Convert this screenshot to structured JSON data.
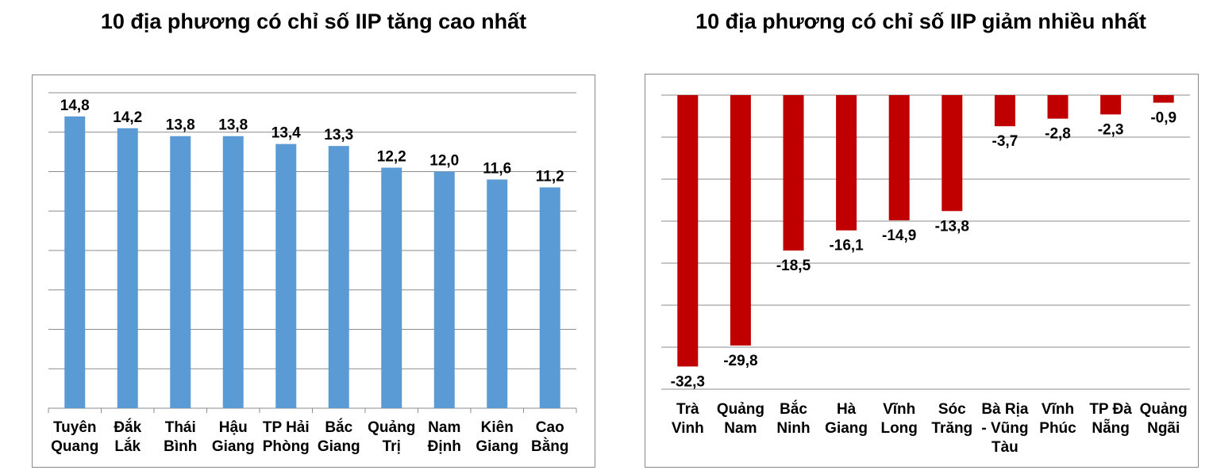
{
  "chart_data": [
    {
      "type": "bar",
      "title": "10 địa phương có chỉ số IIP tăng cao nhất",
      "categories": [
        [
          "Tuyên",
          "Quang"
        ],
        [
          "Đắk",
          "Lắk"
        ],
        [
          "Thái",
          "Bình"
        ],
        [
          "Hậu",
          "Giang"
        ],
        [
          "TP Hải",
          "Phòng"
        ],
        [
          "Bắc",
          "Giang"
        ],
        [
          "Quảng",
          "Trị"
        ],
        [
          "Nam",
          "Định"
        ],
        [
          "Kiên",
          "Giang"
        ],
        [
          "Cao",
          "Bằng"
        ]
      ],
      "values": [
        14.8,
        14.2,
        13.8,
        13.8,
        13.4,
        13.3,
        12.2,
        12.0,
        11.6,
        11.2
      ],
      "value_labels": [
        "14,8",
        "14,2",
        "13,8",
        "13,8",
        "13,4",
        "13,3",
        "12,2",
        "12,0",
        "11,6",
        "11,2"
      ],
      "ylim": [
        0,
        16
      ],
      "grid": true,
      "bar_color": "#5b9bd5"
    },
    {
      "type": "bar",
      "title": "10 địa phương có chỉ số IIP giảm nhiều nhất",
      "categories": [
        [
          "Trà",
          "Vinh"
        ],
        [
          "Quảng",
          "Nam"
        ],
        [
          "Bắc",
          "Ninh"
        ],
        [
          "Hà",
          "Giang"
        ],
        [
          "Vĩnh",
          "Long"
        ],
        [
          "Sóc",
          "Trăng"
        ],
        [
          "Bà Rịa",
          "- Vũng",
          "Tàu"
        ],
        [
          "Vĩnh",
          "Phúc"
        ],
        [
          "TP Đà",
          "Nẵng"
        ],
        [
          "Quảng",
          "Ngãi"
        ]
      ],
      "values": [
        -32.3,
        -29.8,
        -18.5,
        -16.1,
        -14.9,
        -13.8,
        -3.7,
        -2.8,
        -2.3,
        -0.9
      ],
      "value_labels": [
        "-32,3",
        "-29,8",
        "-18,5",
        "-16,1",
        "-14,9",
        "-13,8",
        "-3,7",
        "-2,8",
        "-2,3",
        "-0,9"
      ],
      "ylim": [
        -35,
        0
      ],
      "grid": true,
      "bar_color": "#c00000"
    }
  ]
}
